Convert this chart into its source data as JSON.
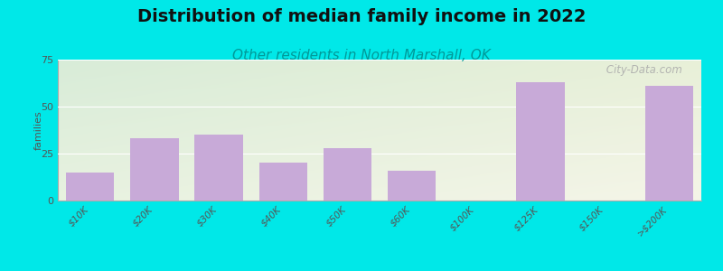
{
  "title": "Distribution of median family income in 2022",
  "subtitle": "Other residents in North Marshall, OK",
  "ylabel": "families",
  "categories": [
    "$10K",
    "$20K",
    "$30K",
    "$40K",
    "$50K",
    "$60K",
    "$100K",
    "$125K",
    "$150K",
    ">$200K"
  ],
  "values": [
    15,
    33,
    35,
    20,
    28,
    16,
    0,
    63,
    0,
    61
  ],
  "bar_color": "#c8aad8",
  "background_outer": "#00e8e8",
  "background_plot_topleft": "#d8ecd8",
  "background_plot_bottomright": "#f5f5e8",
  "ylim": [
    0,
    75
  ],
  "yticks": [
    0,
    25,
    50,
    75
  ],
  "title_fontsize": 14,
  "subtitle_fontsize": 11,
  "watermark": " City-Data.com"
}
